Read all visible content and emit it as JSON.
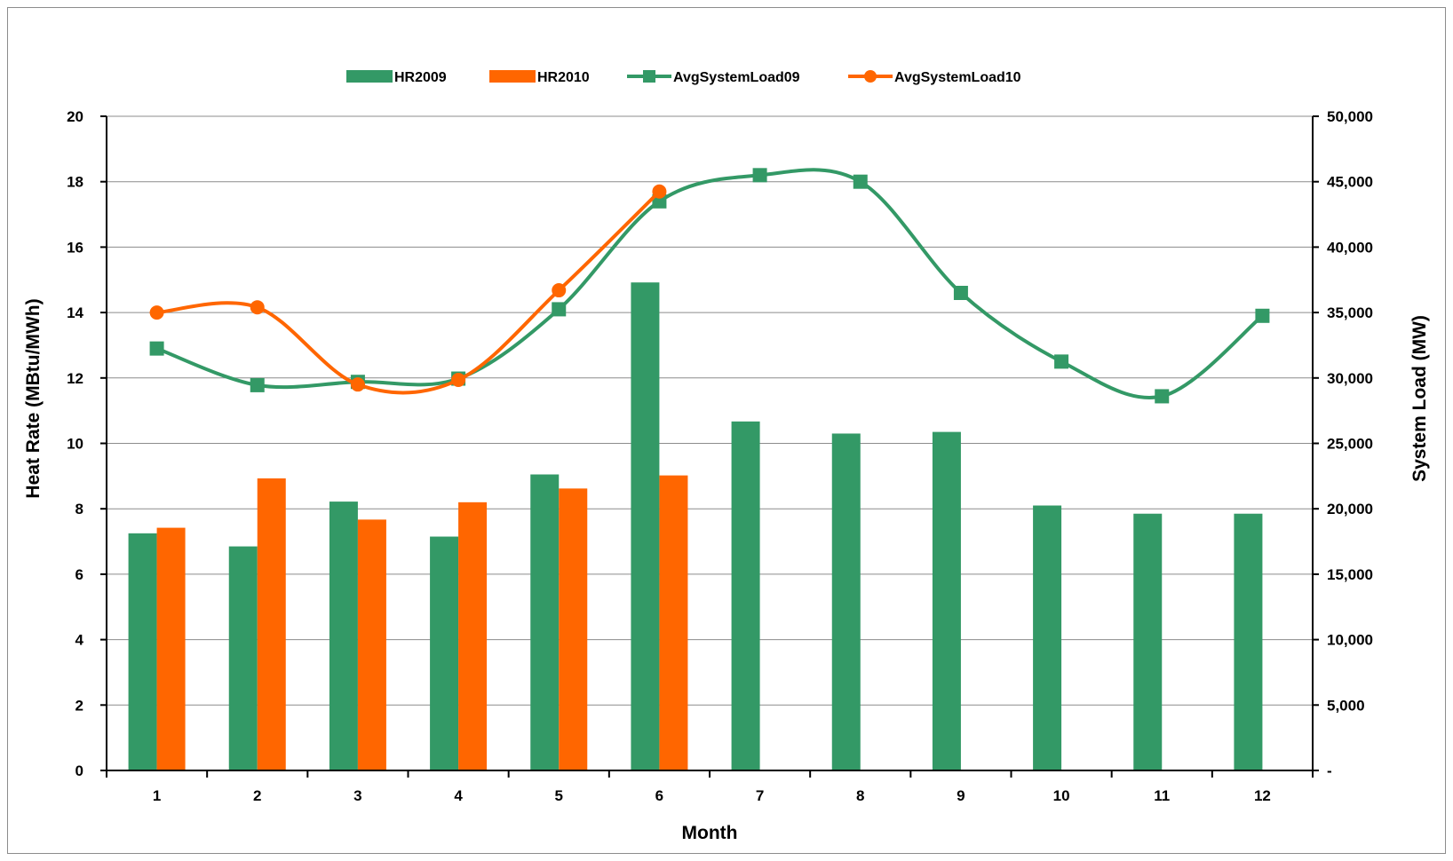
{
  "chart_data": {
    "type": "bar",
    "title": "",
    "xlabel": "Month",
    "ylabel": "Heat Rate (MBtu/MWh)",
    "y2label": "System Load (MW)",
    "categories": [
      "1",
      "2",
      "3",
      "4",
      "5",
      "6",
      "7",
      "8",
      "9",
      "10",
      "11",
      "12"
    ],
    "ylim": [
      0,
      20
    ],
    "y2lim": [
      0,
      50000
    ],
    "yticks": [
      "0",
      "2",
      "4",
      "6",
      "8",
      "10",
      "12",
      "14",
      "16",
      "18",
      "20"
    ],
    "y2ticks": [
      "-",
      "5,000",
      "10,000",
      "15,000",
      "20,000",
      "25,000",
      "30,000",
      "35,000",
      "40,000",
      "45,000",
      "50,000"
    ],
    "grid": "horizontal major",
    "legend_position": "top",
    "series": [
      {
        "name": "HR2009",
        "type": "bar",
        "axis": "left",
        "color": "#339966",
        "values": [
          7.25,
          6.85,
          8.22,
          7.15,
          9.05,
          14.92,
          10.67,
          10.3,
          10.35,
          8.1,
          7.85,
          7.85
        ]
      },
      {
        "name": "HR2010",
        "type": "bar",
        "axis": "left",
        "color": "#ff6600",
        "values": [
          7.42,
          8.93,
          7.67,
          8.2,
          8.62,
          9.02,
          null,
          null,
          null,
          null,
          null,
          null
        ]
      },
      {
        "name": "AvgSystemLoad09",
        "type": "line",
        "axis": "right",
        "marker": "square",
        "color": "#339966",
        "values": [
          32250,
          29450,
          29700,
          29950,
          35250,
          43500,
          45500,
          45000,
          36500,
          31250,
          28600,
          34750
        ]
      },
      {
        "name": "AvgSystemLoad10",
        "type": "line",
        "axis": "right",
        "marker": "circle",
        "color": "#ff6600",
        "values": [
          35000,
          35400,
          29500,
          29850,
          36700,
          44250,
          null,
          null,
          null,
          null,
          null,
          null
        ]
      }
    ]
  }
}
